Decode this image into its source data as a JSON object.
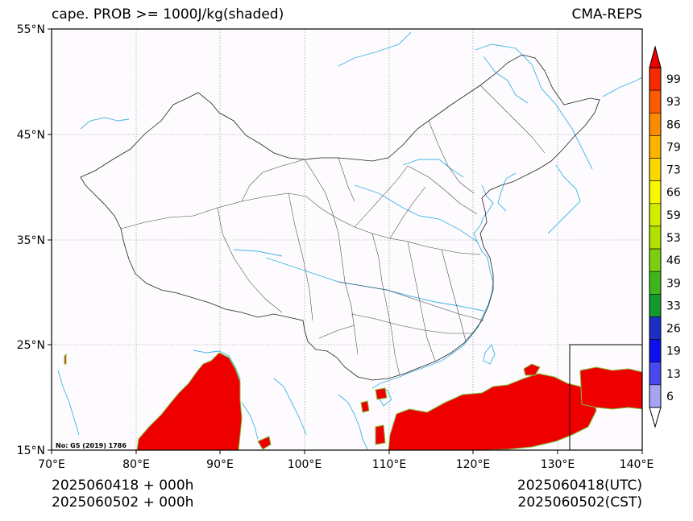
{
  "header": {
    "title_left": "cape. PROB >= 1000J/kg(shaded)",
    "title_right": "CMA-REPS"
  },
  "axes": {
    "lat_labels": [
      "55°N",
      "45°N",
      "35°N",
      "25°N",
      "15°N"
    ],
    "lon_labels": [
      "70°E",
      "80°E",
      "90°E",
      "100°E",
      "110°E",
      "120°E",
      "130°E",
      "140°E"
    ]
  },
  "map": {
    "background": "#fdfbfd",
    "border_color": "#222222",
    "river_color": "#3bb5e6",
    "shade_color": "#ee0000",
    "review_number": "No: GS (2019) 1786"
  },
  "colorbar": {
    "labels": [
      "99",
      "93",
      "86",
      "79",
      "73",
      "66",
      "59",
      "53",
      "46",
      "39",
      "33",
      "26",
      "19",
      "13",
      "6"
    ],
    "colors": [
      "#f52a00",
      "#fb5a00",
      "#fd8b00",
      "#fdb400",
      "#fdd800",
      "#f7f700",
      "#d2ee00",
      "#b0e100",
      "#7ccf10",
      "#3fb51d",
      "#139a2c",
      "#1b2fc4",
      "#1010ee",
      "#4848ee",
      "#a4a4f2"
    ],
    "top_color": "#ee0000",
    "bottom_color": "#ffffff"
  },
  "footer": {
    "left_line1": "2025060418  +  000h",
    "left_line2": "2025060502  +  000h",
    "right_line1": "2025060418(UTC)",
    "right_line2": "2025060502(CST)"
  }
}
